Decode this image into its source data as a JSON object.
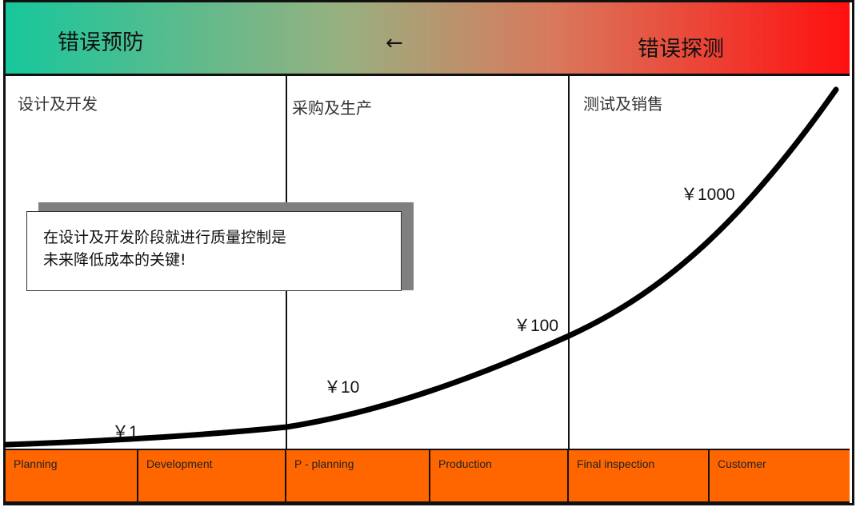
{
  "header": {
    "left": "错误预防",
    "arrow": "←",
    "right": "错误探测"
  },
  "phases": [
    "设计及开发",
    "采购及生产",
    "测试及销售"
  ],
  "callout": {
    "line1": "在设计及开发阶段就进行质量控制是",
    "line2": "未来降低成本的关键!"
  },
  "costs": [
    "￥1",
    "￥10",
    "￥100",
    "￥1000"
  ],
  "stages": [
    "Planning",
    "Development",
    "P - planning",
    "Production",
    "Final inspection",
    "Customer"
  ],
  "colors": {
    "gradient_start": "#17c79c",
    "gradient_end": "#ff1010",
    "stage_bar": "#ff6600"
  }
}
